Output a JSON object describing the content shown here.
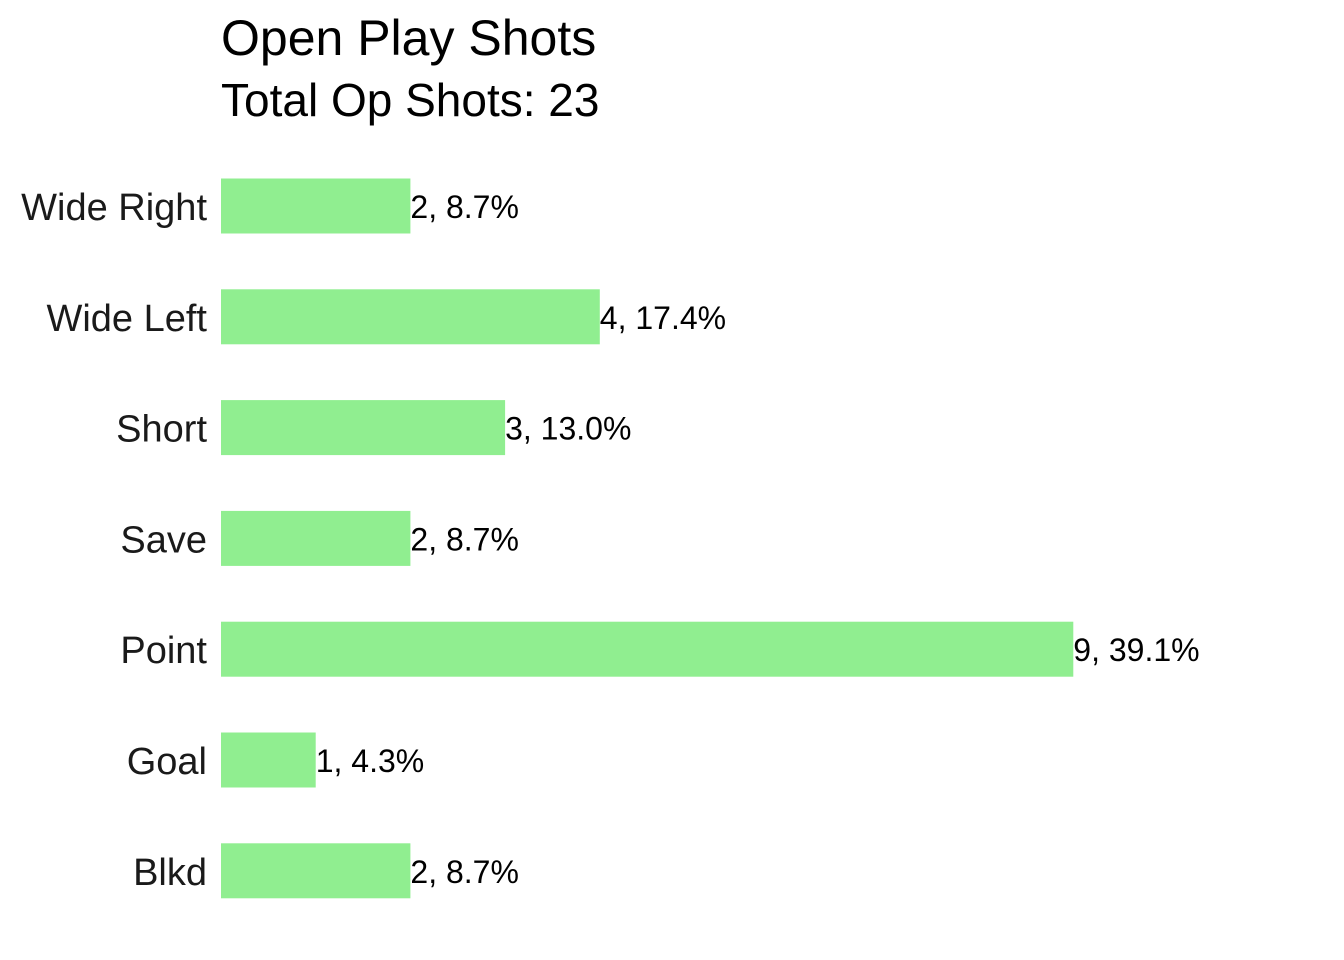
{
  "chart_data": {
    "type": "bar",
    "orientation": "horizontal",
    "title": "Open Play Shots",
    "subtitle": "Total Op Shots: 23",
    "categories": [
      "Wide Right",
      "Wide Left",
      "Short",
      "Save",
      "Point",
      "Goal",
      "Blkd"
    ],
    "values": [
      2,
      4,
      3,
      2,
      9,
      1,
      2
    ],
    "labels": [
      "2, 8.7%",
      "4, 17.4%",
      "3, 13.0%",
      "2, 8.7%",
      "9, 39.1%",
      "1, 4.3%",
      "2, 8.7%"
    ],
    "xlim": [
      0,
      9
    ],
    "grid": false,
    "legend": "none",
    "bar_color": "#90EE90"
  }
}
